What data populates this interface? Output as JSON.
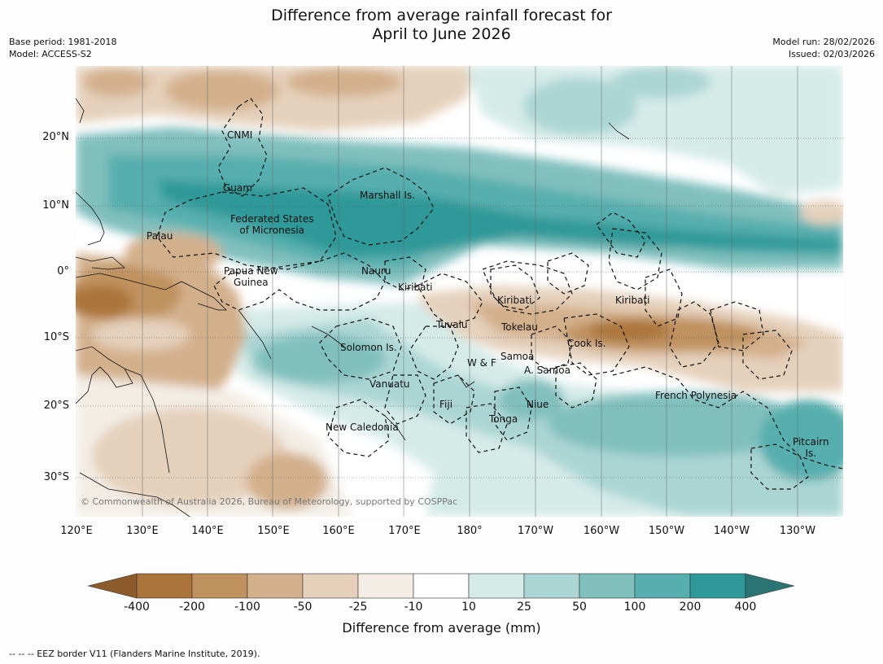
{
  "title": "Difference from average rainfall forecast for",
  "title_line2": "April to June 2026",
  "base_period": "Base period: 1981-2018",
  "model": "Model: ACCESS-S2",
  "model_run": "Model run: 28/02/2026",
  "issued": "Issued: 02/03/2026",
  "lat_labels": [
    "20°N",
    "10°N",
    "0°",
    "10°S",
    "20°S",
    "30°S"
  ],
  "lon_labels": [
    "120°E",
    "130°E",
    "140°E",
    "150°E",
    "160°E",
    "170°E",
    "180°",
    "170°W",
    "160°W",
    "150°W",
    "140°W",
    "130°W"
  ],
  "places": {
    "cnmi": "CNMI",
    "guam": "Guam",
    "marshall": "Marshall Is.",
    "fsm_1": "Federated States",
    "fsm_2": "of Micronesia",
    "palau": "Palau",
    "png_1": "Papua New",
    "png_2": "Guinea",
    "nauru": "Nauru",
    "kiribati_w": "Kiribati",
    "kiribati_c": "Kiribati",
    "kiribati_e": "Kiribati",
    "tuvalu": "Tuvalu",
    "tokelau": "Tokelau",
    "cook": "Cook Is.",
    "solomon": "Solomon Is.",
    "wf": "W & F",
    "samoa": "Samoa",
    "asamoa": "A. Samoa",
    "vanuatu": "Vanuatu",
    "fiji": "Fiji",
    "niue": "Niue",
    "tonga": "Tonga",
    "frpoly": "French Polynesia",
    "newcal": "New Caledonia",
    "pitcairn_1": "Pitcairn",
    "pitcairn_2": "Is."
  },
  "copyright": "© Commonwealth of Australia 2026, Bureau of Meteorology, supported by COSPPac",
  "colorbar": {
    "ticks": [
      "-400",
      "-200",
      "-100",
      "-50",
      "-25",
      "-10",
      "10",
      "25",
      "50",
      "100",
      "200",
      "400"
    ],
    "colors": [
      "#ab743a",
      "#c0925f",
      "#d3b08c",
      "#e5d0bb",
      "#f3ede6",
      "#ffffff",
      "#d5ebe8",
      "#abd5d3",
      "#80bfbe",
      "#57aeae",
      "#2e9998"
    ],
    "under_color": "#8c5a2b",
    "over_color": "#2a7473",
    "label": "Difference from average (mm)"
  },
  "footnote": "--  --  -- EEZ border V11 (Flanders Marine Institute, 2019)."
}
